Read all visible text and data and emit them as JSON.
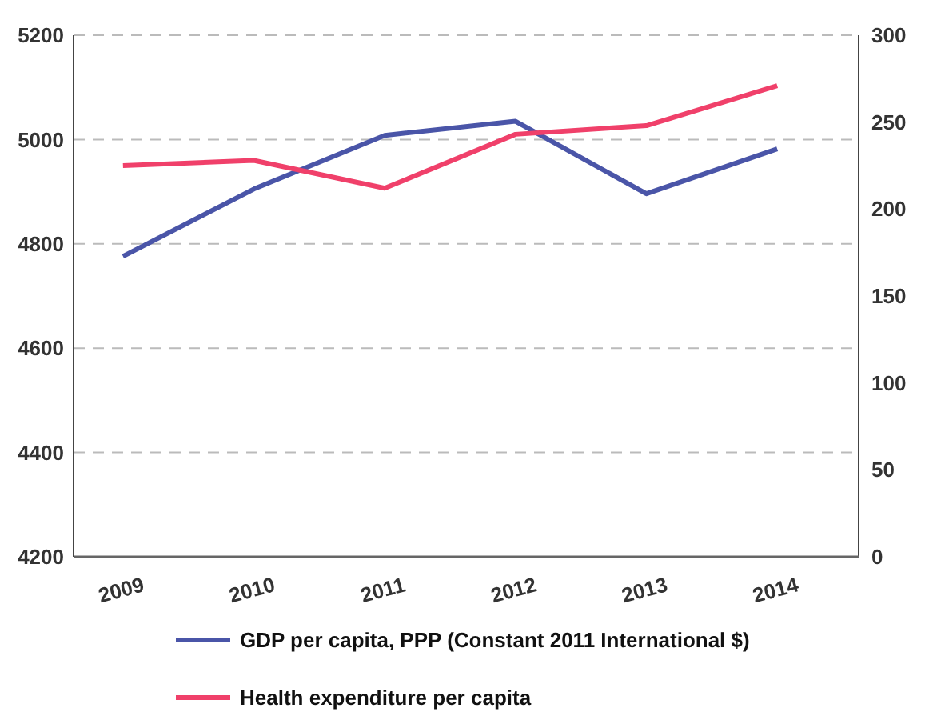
{
  "chart_data": {
    "type": "line",
    "categories": [
      "2009",
      "2010",
      "2011",
      "2012",
      "2013",
      "2014"
    ],
    "series": [
      {
        "name": "GDP per capita, PPP (Constant 2011 International $)",
        "color": "#4a55a8",
        "values": [
          4776,
          4905,
          5008,
          5035,
          4896,
          4982
        ]
      },
      {
        "name": "Health expenditure per capita",
        "color": "#f0406a",
        "values": [
          225,
          228,
          212,
          243,
          248,
          271
        ],
        "axis": "y2"
      }
    ],
    "ylim": [
      4200,
      5200
    ],
    "yticks": [
      4200,
      4400,
      4600,
      4800,
      5000,
      5200
    ],
    "y2lim": [
      0,
      300
    ],
    "y2ticks": [
      0,
      50,
      100,
      150,
      200,
      250,
      300
    ],
    "grid": "y",
    "legend": "bottom",
    "marker": "none",
    "line_style": "solid"
  }
}
